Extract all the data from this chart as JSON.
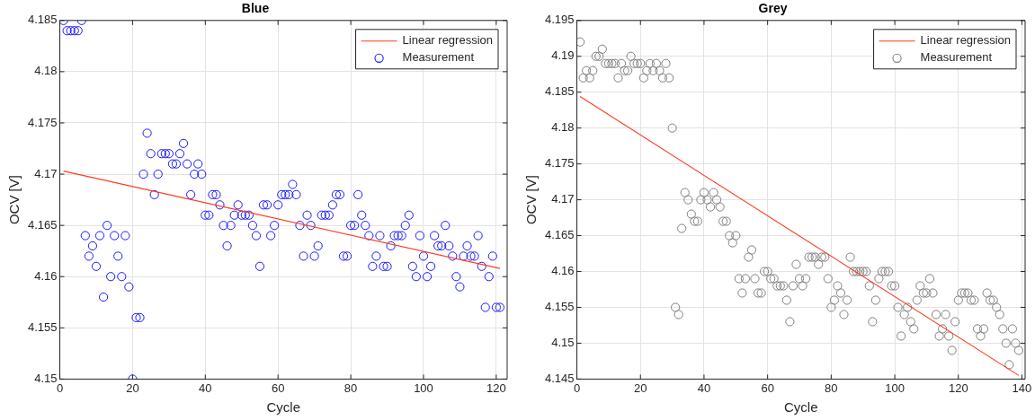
{
  "chart_data": [
    {
      "type": "scatter",
      "title": "Blue",
      "xlabel": "Cycle",
      "ylabel": "OCV [V]",
      "xlim": [
        0,
        123
      ],
      "xticks": [
        0,
        20,
        40,
        60,
        80,
        100,
        120
      ],
      "ylim": [
        4.15,
        4.185
      ],
      "yticks": [
        4.15,
        4.155,
        4.16,
        4.165,
        4.17,
        4.175,
        4.18,
        4.185
      ],
      "grid": true,
      "legend": "top right",
      "x": [
        1,
        2,
        3,
        4,
        5,
        6,
        7,
        8,
        9,
        10,
        11,
        12,
        13,
        14,
        15,
        16,
        17,
        18,
        19,
        20,
        21,
        22,
        23,
        24,
        25,
        26,
        27,
        28,
        29,
        30,
        31,
        32,
        33,
        34,
        35,
        36,
        37,
        38,
        39,
        40,
        41,
        42,
        43,
        44,
        45,
        46,
        47,
        48,
        49,
        50,
        51,
        52,
        53,
        54,
        55,
        56,
        57,
        58,
        59,
        60,
        61,
        62,
        63,
        64,
        65,
        66,
        67,
        68,
        69,
        70,
        71,
        72,
        73,
        74,
        75,
        76,
        77,
        78,
        79,
        80,
        81,
        82,
        83,
        84,
        85,
        86,
        87,
        88,
        89,
        90,
        91,
        92,
        93,
        94,
        95,
        96,
        97,
        98,
        99,
        100,
        101,
        102,
        103,
        104,
        105,
        106,
        107,
        108,
        109,
        110,
        111,
        112,
        113,
        114,
        115,
        116,
        117,
        118,
        119,
        120,
        121
      ],
      "series": [
        {
          "name": "Linear regression",
          "type": "line",
          "color": "#ff3b1f",
          "marker": "none",
          "x": [
            1,
            121
          ],
          "values": [
            4.1703,
            4.1608
          ]
        },
        {
          "name": "Measurement",
          "color": "#1a1aff",
          "marker": "circle",
          "values": [
            4.185,
            4.184,
            4.184,
            4.184,
            4.184,
            4.185,
            4.164,
            4.162,
            4.163,
            4.161,
            4.164,
            4.158,
            4.165,
            4.16,
            4.164,
            4.162,
            4.16,
            4.164,
            4.159,
            4.15,
            4.156,
            4.156,
            4.17,
            4.174,
            4.172,
            4.168,
            4.17,
            4.172,
            4.172,
            4.172,
            4.171,
            4.171,
            4.172,
            4.173,
            4.171,
            4.168,
            4.17,
            4.171,
            4.17,
            4.166,
            4.166,
            4.168,
            4.168,
            4.167,
            4.165,
            4.163,
            4.165,
            4.166,
            4.167,
            4.166,
            4.166,
            4.166,
            4.165,
            4.164,
            4.161,
            4.167,
            4.167,
            4.164,
            4.165,
            4.167,
            4.168,
            4.168,
            4.168,
            4.169,
            4.168,
            4.165,
            4.162,
            4.166,
            4.165,
            4.162,
            4.163,
            4.166,
            4.166,
            4.166,
            4.167,
            4.168,
            4.168,
            4.162,
            4.162,
            4.165,
            4.165,
            4.168,
            4.166,
            4.165,
            4.164,
            4.161,
            4.162,
            4.164,
            4.161,
            4.161,
            4.163,
            4.164,
            4.164,
            4.164,
            4.165,
            4.166,
            4.161,
            4.16,
            4.164,
            4.162,
            4.16,
            4.161,
            4.164,
            4.163,
            4.163,
            4.165,
            4.163,
            4.162,
            4.16,
            4.159,
            4.162,
            4.163,
            4.162,
            4.162,
            4.164,
            4.161,
            4.157,
            4.16,
            4.162,
            4.157,
            4.157
          ]
        }
      ]
    },
    {
      "type": "scatter",
      "title": "Grey",
      "xlabel": "Cycle",
      "ylabel": "OCV [V]",
      "xlim": [
        0,
        141
      ],
      "xticks": [
        0,
        20,
        40,
        60,
        80,
        100,
        120,
        140
      ],
      "ylim": [
        4.145,
        4.195
      ],
      "yticks": [
        4.145,
        4.15,
        4.155,
        4.16,
        4.165,
        4.17,
        4.175,
        4.18,
        4.185,
        4.19,
        4.195
      ],
      "grid": true,
      "legend": "top right",
      "x": [
        1,
        2,
        3,
        4,
        5,
        6,
        7,
        8,
        9,
        10,
        11,
        12,
        13,
        14,
        15,
        16,
        17,
        18,
        19,
        20,
        21,
        22,
        23,
        24,
        25,
        26,
        27,
        28,
        29,
        30,
        31,
        32,
        33,
        34,
        35,
        36,
        37,
        38,
        39,
        40,
        41,
        42,
        43,
        44,
        45,
        46,
        47,
        48,
        49,
        50,
        51,
        52,
        53,
        54,
        55,
        56,
        57,
        58,
        59,
        60,
        61,
        62,
        63,
        64,
        65,
        66,
        67,
        68,
        69,
        70,
        71,
        72,
        73,
        74,
        75,
        76,
        77,
        78,
        79,
        80,
        81,
        82,
        83,
        84,
        85,
        86,
        87,
        88,
        89,
        90,
        91,
        92,
        93,
        94,
        95,
        96,
        97,
        98,
        99,
        100,
        101,
        102,
        103,
        104,
        105,
        106,
        107,
        108,
        109,
        110,
        111,
        112,
        113,
        114,
        115,
        116,
        117,
        118,
        119,
        120,
        121,
        122,
        123,
        124,
        125,
        126,
        127,
        128,
        129,
        130,
        131,
        132,
        133,
        134,
        135,
        136,
        137,
        138,
        139
      ],
      "series": [
        {
          "name": "Linear regression",
          "type": "line",
          "color": "#ff3b1f",
          "marker": "none",
          "x": [
            1,
            139
          ],
          "values": [
            4.1844,
            4.1455
          ]
        },
        {
          "name": "Measurement",
          "color": "#808080",
          "marker": "circle",
          "values": [
            4.192,
            4.187,
            4.188,
            4.187,
            4.188,
            4.19,
            4.19,
            4.191,
            4.189,
            4.189,
            4.189,
            4.189,
            4.187,
            4.189,
            4.188,
            4.188,
            4.19,
            4.189,
            4.189,
            4.189,
            4.187,
            4.188,
            4.189,
            4.188,
            4.189,
            4.188,
            4.187,
            4.189,
            4.187,
            4.18,
            4.155,
            4.154,
            4.166,
            4.171,
            4.17,
            4.168,
            4.167,
            4.167,
            4.17,
            4.171,
            4.17,
            4.169,
            4.171,
            4.17,
            4.169,
            4.167,
            4.167,
            4.165,
            4.164,
            4.165,
            4.159,
            4.157,
            4.159,
            4.162,
            4.163,
            4.159,
            4.157,
            4.157,
            4.16,
            4.16,
            4.159,
            4.159,
            4.158,
            4.158,
            4.158,
            4.156,
            4.153,
            4.158,
            4.161,
            4.159,
            4.158,
            4.159,
            4.162,
            4.162,
            4.162,
            4.161,
            4.162,
            4.162,
            4.159,
            4.155,
            4.156,
            4.158,
            4.157,
            4.154,
            4.156,
            4.162,
            4.16,
            4.16,
            4.16,
            4.16,
            4.16,
            4.158,
            4.153,
            4.156,
            4.159,
            4.16,
            4.16,
            4.16,
            4.158,
            4.158,
            4.155,
            4.151,
            4.154,
            4.155,
            4.153,
            4.152,
            4.156,
            4.158,
            4.157,
            4.157,
            4.159,
            4.157,
            4.154,
            4.151,
            4.152,
            4.154,
            4.151,
            4.149,
            4.153,
            4.156,
            4.157,
            4.157,
            4.157,
            4.156,
            4.156,
            4.152,
            4.151,
            4.152,
            4.157,
            4.156,
            4.156,
            4.155,
            4.154,
            4.152,
            4.15,
            4.147,
            4.152,
            4.15,
            4.149
          ]
        }
      ]
    }
  ]
}
